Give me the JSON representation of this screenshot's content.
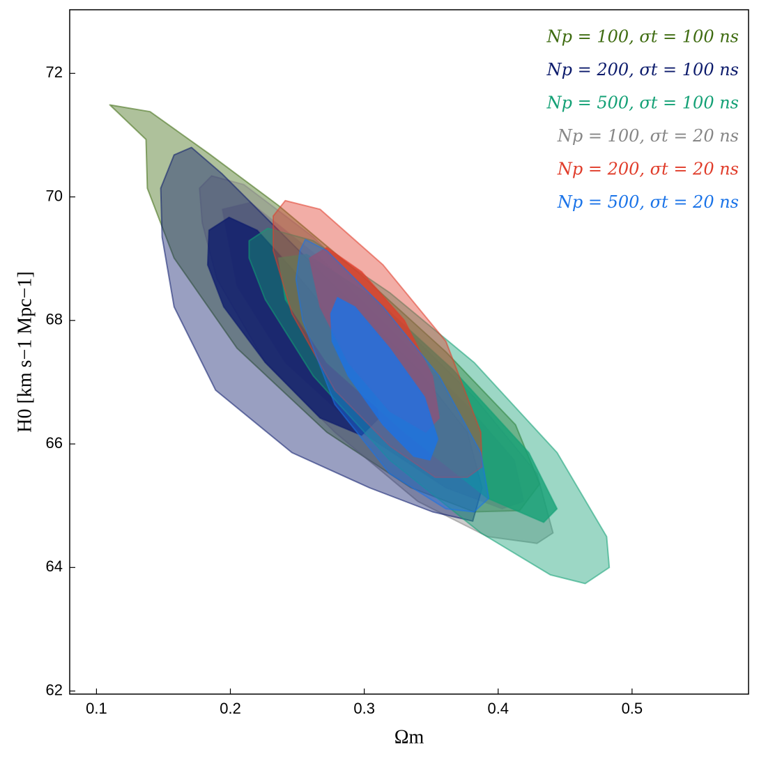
{
  "chart_data": {
    "type": "contour",
    "xlabel": "Ωm",
    "ylabel": "H0 [km s−1 Mpc−1]",
    "xlim": [
      0.08,
      0.587
    ],
    "ylim": [
      61.95,
      73.03
    ],
    "xticks": [
      0.1,
      0.2,
      0.3,
      0.4,
      0.5
    ],
    "yticks": [
      62,
      64,
      66,
      68,
      70,
      72
    ],
    "legend": "upper right",
    "series": [
      {
        "name": "Np = 100, σt = 100 ns",
        "color": "#3e6b10",
        "outer": {
          "x": [
            0.11,
            0.14,
            0.184,
            0.236,
            0.298,
            0.361,
            0.413,
            0.431,
            0.416,
            0.382,
            0.335,
            0.272,
            0.205,
            0.158,
            0.138,
            0.137
          ],
          "y": [
            71.49,
            71.38,
            70.7,
            69.86,
            68.73,
            67.49,
            66.31,
            65.35,
            64.92,
            64.9,
            65.29,
            66.19,
            67.55,
            69.01,
            70.14,
            70.93
          ]
        }
      },
      {
        "name": "Np = 200, σt = 100 ns",
        "color": "#0b1a6b",
        "outer": {
          "x": [
            0.148,
            0.158,
            0.171,
            0.194,
            0.236,
            0.288,
            0.34,
            0.377,
            0.388,
            0.381,
            0.351,
            0.304,
            0.246,
            0.189,
            0.158,
            0.149
          ],
          "y": [
            70.14,
            70.68,
            70.8,
            70.37,
            69.46,
            68.34,
            67.21,
            66.19,
            65.29,
            64.75,
            64.9,
            65.29,
            65.86,
            66.87,
            68.22,
            69.35
          ]
        },
        "inner": {
          "x": [
            0.184,
            0.199,
            0.22,
            0.246,
            0.278,
            0.304,
            0.311,
            0.298,
            0.267,
            0.226,
            0.195,
            0.183
          ],
          "y": [
            69.46,
            69.67,
            69.46,
            68.84,
            68.0,
            67.1,
            66.42,
            66.14,
            66.42,
            67.32,
            68.22,
            68.9
          ]
        }
      },
      {
        "name": "Np = 500, σt = 100 ns",
        "color": "#13a075",
        "outer": {
          "x": [
            0.214,
            0.228,
            0.262,
            0.319,
            0.382,
            0.444,
            0.481,
            0.483,
            0.465,
            0.439,
            0.387,
            0.319,
            0.262,
            0.226,
            0.214
          ],
          "y": [
            69.29,
            69.49,
            69.29,
            68.45,
            67.32,
            65.86,
            64.5,
            64.0,
            63.74,
            63.88,
            64.56,
            65.74,
            67.1,
            68.34,
            69.01
          ]
        },
        "inner": {
          "x": [
            0.236,
            0.257,
            0.309,
            0.366,
            0.423,
            0.444,
            0.434,
            0.392,
            0.33,
            0.272,
            0.241
          ],
          "y": [
            69.01,
            69.07,
            68.34,
            67.21,
            65.86,
            64.95,
            64.73,
            65.12,
            66.19,
            67.32,
            68.34
          ]
        }
      },
      {
        "name": "Np = 100, σt = 20 ns",
        "color": "#868686",
        "outer": {
          "x": [
            0.177,
            0.186,
            0.21,
            0.262,
            0.319,
            0.382,
            0.429,
            0.441,
            0.429,
            0.392,
            0.34,
            0.278,
            0.226,
            0.19,
            0.179
          ],
          "y": [
            70.14,
            70.34,
            70.2,
            69.35,
            68.11,
            66.76,
            65.52,
            64.56,
            64.39,
            64.5,
            65.07,
            66.19,
            67.32,
            68.67,
            69.58
          ]
        },
        "inner": {
          "x": [
            0.194,
            0.215,
            0.267,
            0.319,
            0.376,
            0.412,
            0.419,
            0.403,
            0.361,
            0.298,
            0.241,
            0.205
          ],
          "y": [
            69.8,
            69.91,
            69.01,
            67.88,
            66.64,
            65.74,
            65.07,
            64.95,
            65.29,
            66.19,
            67.32,
            68.56
          ]
        }
      },
      {
        "name": "Np = 200, σt = 20 ns",
        "color": "#e03c2a",
        "outer": {
          "x": [
            0.232,
            0.241,
            0.267,
            0.314,
            0.361,
            0.387,
            0.388,
            0.377,
            0.353,
            0.319,
            0.278,
            0.246,
            0.232
          ],
          "y": [
            69.69,
            69.94,
            69.8,
            68.9,
            67.66,
            66.19,
            65.63,
            65.46,
            65.46,
            65.97,
            66.87,
            68.11,
            69.13
          ]
        },
        "inner": {
          "x": [
            0.259,
            0.272,
            0.298,
            0.33,
            0.351,
            0.356,
            0.346,
            0.319,
            0.288,
            0.267
          ],
          "y": [
            69.01,
            69.18,
            68.79,
            68.0,
            67.1,
            66.42,
            66.19,
            66.53,
            67.32,
            68.22
          ]
        }
      },
      {
        "name": "Np = 500, σt = 20 ns",
        "color": "#1a73e8",
        "outer": {
          "x": [
            0.252,
            0.256,
            0.272,
            0.314,
            0.356,
            0.387,
            0.393,
            0.382,
            0.361,
            0.319,
            0.278,
            0.254,
            0.249
          ],
          "y": [
            69.13,
            69.31,
            69.13,
            68.22,
            67.1,
            65.86,
            65.12,
            64.9,
            64.95,
            65.52,
            66.64,
            68.0,
            68.67
          ]
        },
        "inner": {
          "x": [
            0.275,
            0.28,
            0.293,
            0.319,
            0.345,
            0.355,
            0.349,
            0.337,
            0.314,
            0.288,
            0.276
          ],
          "y": [
            68.11,
            68.37,
            68.22,
            67.55,
            66.76,
            66.08,
            65.74,
            65.8,
            66.31,
            67.1,
            67.66
          ]
        }
      }
    ]
  }
}
